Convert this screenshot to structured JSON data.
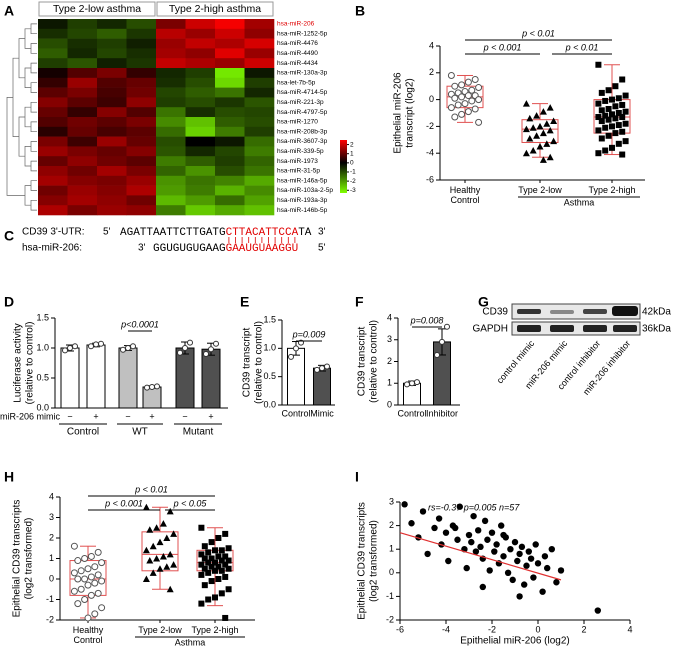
{
  "chart_data": [
    {
      "type": "heatmap",
      "panel": "A",
      "column_groups": [
        "Type 2-low asthma",
        "Type 2-high asthma"
      ],
      "rows": [
        "hsa-miR-206",
        "hsa-miR-1252-5p",
        "hsa-miR-4476",
        "hsa-miR-4490",
        "hsa-miR-4434",
        "hsa-miR-130a-3p",
        "hsa-let-7b-5p",
        "hsa-miR-4714-5p",
        "hsa-miR-221-3p",
        "hsa-miR-4797-5p",
        "hsa-miR-1270",
        "hsa-miR-208b-3p",
        "hsa-miR-3607-3p",
        "hsa-miR-339-5p",
        "hsa-miR-1973",
        "hsa-miR-31-5p",
        "hsa-miR-146a-5p",
        "hsa-miR-103a-2-5p",
        "hsa-miR-193a-3p",
        "hsa-miR-146b-5p"
      ],
      "values": [
        [
          -0.3,
          -0.8,
          -0.5,
          -1.0,
          1.2,
          2.0,
          2.4,
          1.6
        ],
        [
          -0.6,
          -0.9,
          -1.2,
          -0.7,
          1.8,
          1.5,
          2.0,
          1.4
        ],
        [
          -1.0,
          -0.6,
          -0.8,
          -0.4,
          1.5,
          1.9,
          1.7,
          2.1
        ],
        [
          -1.2,
          -0.5,
          -0.9,
          -0.6,
          1.6,
          1.4,
          2.2,
          1.5
        ],
        [
          -0.8,
          -1.1,
          -0.4,
          -0.7,
          1.9,
          1.7,
          1.5,
          2.0
        ],
        [
          0.2,
          0.8,
          1.2,
          0.5,
          -0.5,
          -0.8,
          -3.0,
          -0.3
        ],
        [
          0.5,
          1.5,
          0.8,
          1.0,
          -0.6,
          -1.0,
          -2.8,
          -0.8
        ],
        [
          0.9,
          1.2,
          0.7,
          1.1,
          -0.9,
          -1.2,
          -1.5,
          -0.5
        ],
        [
          1.3,
          0.9,
          0.6,
          1.4,
          -0.8,
          -1.0,
          -0.7,
          -1.1
        ],
        [
          1.0,
          0.5,
          1.3,
          0.8,
          -1.5,
          -0.6,
          -1.0,
          -0.9
        ],
        [
          0.8,
          1.1,
          0.9,
          1.2,
          -1.8,
          -2.5,
          -1.2,
          -1.0
        ],
        [
          0.4,
          1.0,
          0.7,
          0.9,
          -1.4,
          -2.7,
          -1.6,
          -0.8
        ],
        [
          1.2,
          0.6,
          1.5,
          1.0,
          -1.0,
          0.0,
          -0.3,
          -1.4
        ],
        [
          1.5,
          1.2,
          1.0,
          1.3,
          -1.1,
          -0.5,
          -0.9,
          -1.6
        ],
        [
          1.0,
          1.4,
          1.1,
          0.9,
          -1.6,
          -1.2,
          -0.8,
          -1.3
        ],
        [
          1.4,
          1.1,
          1.6,
          1.2,
          -1.3,
          -1.9,
          -1.0,
          -1.5
        ],
        [
          1.6,
          1.3,
          1.2,
          1.5,
          -1.9,
          -1.5,
          -1.7,
          -2.2
        ],
        [
          1.1,
          1.5,
          1.3,
          1.7,
          -2.0,
          -1.6,
          -2.3,
          -1.8
        ],
        [
          1.3,
          1.6,
          1.4,
          1.1,
          -2.4,
          -2.0,
          -1.4,
          -2.1
        ],
        [
          1.7,
          1.2,
          1.5,
          1.4,
          -1.6,
          -2.6,
          -2.2,
          -2.5
        ]
      ],
      "clim": [
        -3.3,
        2.5
      ],
      "cticks": [
        2,
        1,
        0,
        -1,
        -2,
        -3
      ],
      "highlight": "hsa-miR-206",
      "highlight_color": "#e00000"
    },
    {
      "type": "box",
      "panel": "B",
      "ylabel": [
        "Epithelial miR-206",
        "transcript (log2)"
      ],
      "categories": [
        "Healthy Control",
        "Type 2-low",
        "Type 2-high"
      ],
      "group": "Asthma",
      "ylim": [
        -6,
        4
      ],
      "yticks": [
        -6,
        -4,
        -2,
        0,
        2,
        4
      ],
      "box_color": "#e05050",
      "markers": [
        "circle",
        "triangle",
        "square"
      ],
      "boxes": [
        {
          "min": -1.7,
          "q1": -0.6,
          "median": 0.2,
          "q3": 1.0,
          "max": 1.8
        },
        {
          "min": -4.3,
          "q1": -3.2,
          "median": -2.2,
          "q3": -1.5,
          "max": -0.3
        },
        {
          "min": -4.1,
          "q1": -2.5,
          "median": -1.3,
          "q3": 0.0,
          "max": 2.6
        }
      ],
      "points": [
        [
          1.8,
          1.5,
          1.3,
          1.1,
          1.0,
          0.9,
          0.7,
          0.6,
          0.5,
          0.4,
          0.3,
          0.3,
          0.2,
          0.1,
          0.0,
          -0.1,
          -0.3,
          -0.4,
          -0.6,
          -0.7,
          -0.9,
          -1.1,
          -1.3,
          -1.7
        ],
        [
          -0.3,
          -0.6,
          -0.9,
          -1.2,
          -1.4,
          -1.6,
          -1.8,
          -2.0,
          -2.1,
          -2.2,
          -2.3,
          -2.5,
          -2.7,
          -2.9,
          -3.1,
          -3.3,
          -3.5,
          -3.8,
          -4.0,
          -4.3,
          -4.5
        ],
        [
          2.6,
          1.5,
          1.0,
          0.7,
          0.5,
          0.3,
          0.1,
          0.0,
          -0.1,
          -0.3,
          -0.4,
          -0.5,
          -0.7,
          -0.8,
          -0.9,
          -1.0,
          -1.1,
          -1.2,
          -1.3,
          -1.3,
          -1.4,
          -1.5,
          -1.6,
          -1.8,
          -1.9,
          -2.0,
          -2.1,
          -2.3,
          -2.4,
          -2.5,
          -2.7,
          -2.9,
          -3.1,
          -3.3,
          -3.6,
          -3.8,
          -4.0,
          -4.1
        ]
      ],
      "annotations": [
        "p < 0.01",
        "p < 0.001",
        "p < 0.01"
      ]
    },
    {
      "type": "bar",
      "panel": "D",
      "ylabel": [
        "Luciferase activity",
        "(relative to control)"
      ],
      "xlabel": "miR-206 mimic",
      "categories": [
        "−",
        "+",
        "−",
        "+",
        "−",
        "+"
      ],
      "groups": [
        "Control",
        "WT",
        "Mutant"
      ],
      "values": [
        1.0,
        1.05,
        1.0,
        0.35,
        1.0,
        0.98
      ],
      "errors": [
        0.05,
        0.03,
        0.04,
        0.02,
        0.1,
        0.1
      ],
      "points": [
        [
          0.96,
          1.0,
          1.03
        ],
        [
          1.03,
          1.06,
          1.07
        ],
        [
          0.97,
          1.0,
          1.03
        ],
        [
          0.34,
          0.35,
          0.36
        ],
        [
          0.92,
          1.0,
          1.09
        ],
        [
          0.9,
          0.98,
          1.07
        ]
      ],
      "colors": [
        "#ffffff",
        "#ffffff",
        "#c0c0c0",
        "#c0c0c0",
        "#505050",
        "#505050"
      ],
      "ylim": [
        0,
        1.5
      ],
      "yticks": [
        {
          "value": 0,
          "label": "0.0"
        },
        0.5,
        {
          "value": 1,
          "label": "1.0"
        },
        1.5
      ],
      "annotations": [
        "p<0.0001"
      ]
    },
    {
      "type": "bar",
      "panel": "E",
      "ylabel": [
        "CD39 transcript",
        "(relative to control)"
      ],
      "categories": [
        "Control",
        "Mimic"
      ],
      "values": [
        1.0,
        0.65
      ],
      "errors": [
        0.12,
        0.05
      ],
      "points": [
        [
          0.85,
          1.0,
          1.1
        ],
        [
          0.62,
          0.65,
          0.68
        ]
      ],
      "colors": [
        "#ffffff",
        "#505050"
      ],
      "ylim": [
        0,
        1.5
      ],
      "yticks": [
        {
          "value": 0,
          "label": "0.0"
        },
        0.5,
        {
          "value": 1,
          "label": "1.0"
        },
        1.5
      ],
      "annotations": [
        "p=0.009"
      ]
    },
    {
      "type": "bar",
      "panel": "F",
      "ylabel": [
        "CD39 transcript",
        "(relative to control)"
      ],
      "categories": [
        "Control",
        "Inhibitor"
      ],
      "values": [
        1.0,
        2.9
      ],
      "errors": [
        0.1,
        0.6
      ],
      "points": [
        [
          0.95,
          1.0,
          1.05
        ],
        [
          2.3,
          2.9,
          3.6
        ]
      ],
      "colors": [
        "#ffffff",
        "#505050"
      ],
      "ylim": [
        0,
        4
      ],
      "yticks": [
        0,
        1,
        2,
        3,
        4
      ],
      "annotations": [
        "p=0.008"
      ]
    },
    {
      "type": "box",
      "panel": "H",
      "ylabel": [
        "Epithelial CD39 transcripts",
        "(log2 transformed)"
      ],
      "categories": [
        "Healthy Control",
        "Type 2-low",
        "Type 2-high"
      ],
      "group": "Asthma",
      "ylim": [
        -2,
        4
      ],
      "yticks": [
        -2,
        -1,
        0,
        1,
        2,
        3,
        4
      ],
      "box_color": "#e05050",
      "markers": [
        "circle",
        "triangle",
        "square"
      ],
      "boxes": [
        {
          "min": -1.9,
          "q1": -0.8,
          "median": 0.0,
          "q3": 0.9,
          "max": 1.6
        },
        {
          "min": -0.5,
          "q1": 0.4,
          "median": 1.2,
          "q3": 2.3,
          "max": 3.5
        },
        {
          "min": -1.3,
          "q1": 0.4,
          "median": 0.8,
          "q3": 1.4,
          "max": 2.5
        }
      ],
      "points": [
        [
          1.6,
          1.3,
          1.1,
          1.0,
          0.9,
          0.8,
          0.6,
          0.5,
          0.4,
          0.3,
          0.2,
          0.1,
          0.0,
          0.0,
          -0.1,
          -0.2,
          -0.3,
          -0.5,
          -0.6,
          -0.7,
          -0.8,
          -1.0,
          -1.2,
          -1.4,
          -1.7,
          -1.9
        ],
        [
          3.5,
          3.3,
          2.7,
          2.5,
          2.4,
          2.2,
          2.0,
          1.8,
          1.6,
          1.4,
          1.2,
          1.1,
          1.0,
          0.9,
          0.7,
          0.6,
          0.5,
          0.3,
          0.0,
          -0.5
        ],
        [
          2.5,
          2.2,
          2.0,
          1.8,
          1.6,
          1.5,
          1.4,
          1.4,
          1.3,
          1.2,
          1.1,
          1.1,
          1.0,
          1.0,
          0.9,
          0.9,
          0.8,
          0.8,
          0.7,
          0.7,
          0.6,
          0.6,
          0.5,
          0.5,
          0.4,
          0.4,
          0.3,
          0.2,
          0.1,
          0.0,
          -0.1,
          -0.3,
          -0.5,
          -0.7,
          -0.9,
          -1.0,
          -1.2,
          -1.9
        ]
      ],
      "annotations": [
        "p < 0.01",
        "p < 0.001",
        "p < 0.05"
      ]
    },
    {
      "type": "scatter",
      "panel": "I",
      "ylabel": [
        "Epithelial CD39 transcripts",
        "(log2 transformed)"
      ],
      "xlabel": "Epithelial miR-206 (log2)",
      "annotation": "rs=-0.37 p=0.005 n=57",
      "x": [
        -5.8,
        -5.5,
        -5.2,
        -5.0,
        -4.8,
        -4.5,
        -4.3,
        -4.2,
        -4.0,
        -3.9,
        -3.7,
        -3.5,
        -3.4,
        -3.2,
        -3.1,
        -3.0,
        -2.9,
        -2.8,
        -2.7,
        -2.6,
        -2.5,
        -2.4,
        -2.3,
        -2.2,
        -2.1,
        -2.0,
        -1.9,
        -1.8,
        -1.7,
        -1.6,
        -1.5,
        -1.4,
        -1.3,
        -1.2,
        -1.1,
        -1.0,
        -0.9,
        -0.8,
        -0.7,
        -0.6,
        -0.5,
        -0.4,
        -0.3,
        -0.2,
        -0.1,
        0.0,
        0.2,
        0.4,
        0.6,
        0.8,
        1.0,
        -3.6,
        -2.4,
        -1.5,
        -0.8,
        0.3,
        2.6
      ],
      "y": [
        2.9,
        2.1,
        1.5,
        2.6,
        0.8,
        1.9,
        2.3,
        1.2,
        1.7,
        0.5,
        2.0,
        1.4,
        2.8,
        1.0,
        0.2,
        1.6,
        1.3,
        2.4,
        0.9,
        1.8,
        1.1,
        0.6,
        2.2,
        1.4,
        0.1,
        1.7,
        0.9,
        1.2,
        0.4,
        2.0,
        0.7,
        1.5,
        0.0,
        1.0,
        -0.3,
        1.3,
        0.5,
        0.8,
        1.1,
        -0.5,
        0.3,
        0.9,
        0.6,
        -0.2,
        1.2,
        0.4,
        -0.8,
        0.2,
        1.0,
        -0.4,
        0.1,
        1.9,
        -0.6,
        1.6,
        -1.0,
        0.7,
        -1.6
      ],
      "trend": {
        "x": [
          -6,
          1
        ],
        "y": [
          1.7,
          -0.3
        ],
        "color": "#e03030"
      },
      "xlim": [
        -6,
        4
      ],
      "xticks": [
        -6,
        -4,
        -2,
        0,
        2,
        4
      ],
      "ylim": [
        -2,
        3
      ],
      "yticks": [
        -2,
        -1,
        0,
        1,
        2,
        3
      ]
    }
  ],
  "panel_C": {
    "panel": "C",
    "utr_label": "CD39 3'-UTR:",
    "utr_5": "5'",
    "utr_seq": "AGATTAATTCTTGATG",
    "utr_site": "CTTACATTCCA",
    "utr_end": "TA",
    "utr_3": "3'",
    "mir_label": "hsa-miR-206:",
    "mir_3": "3'",
    "mir_seq": "GGUGUGUGAAG",
    "mir_site": "GAAUGUAAGGU",
    "mir_5": "5'"
  },
  "panel_G": {
    "panel": "G",
    "rows": [
      "CD39",
      "GAPDH"
    ],
    "sizes": [
      "42kDa",
      "36kDa"
    ],
    "lanes": [
      "control mimic",
      "miR-206 mimic",
      "control inhibitor",
      "miR-206 inhibitor"
    ]
  }
}
